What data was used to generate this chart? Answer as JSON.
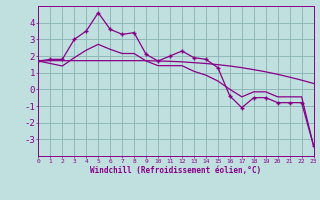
{
  "title": "",
  "xlabel": "Windchill (Refroidissement éolien,°C)",
  "background_color": "#c0e0e0",
  "grid_color": "#90b8b8",
  "line_color": "#880088",
  "x_values": [
    0,
    1,
    2,
    3,
    4,
    5,
    6,
    7,
    8,
    9,
    10,
    11,
    12,
    13,
    14,
    15,
    16,
    17,
    18,
    19,
    20,
    21,
    22,
    23
  ],
  "y_main": [
    1.7,
    1.8,
    1.8,
    3.0,
    3.5,
    4.6,
    3.6,
    3.3,
    3.4,
    2.1,
    1.7,
    2.0,
    2.3,
    1.9,
    1.8,
    1.3,
    -0.4,
    -1.1,
    -0.5,
    -0.5,
    -0.8,
    -0.8,
    -0.8,
    -3.4
  ],
  "y_trend_flat": [
    1.7,
    1.72,
    1.72,
    1.72,
    1.72,
    1.72,
    1.72,
    1.72,
    1.72,
    1.72,
    1.7,
    1.68,
    1.65,
    1.6,
    1.55,
    1.48,
    1.4,
    1.3,
    1.18,
    1.05,
    0.9,
    0.73,
    0.55,
    0.35
  ],
  "y_trend_steep": [
    1.7,
    1.55,
    1.4,
    1.9,
    2.35,
    2.7,
    2.4,
    2.15,
    2.15,
    1.7,
    1.42,
    1.42,
    1.42,
    1.08,
    0.85,
    0.5,
    0.0,
    -0.45,
    -0.15,
    -0.15,
    -0.45,
    -0.45,
    -0.45,
    -3.4
  ],
  "ylim": [
    -4,
    5
  ],
  "yticks": [
    -3,
    -2,
    -1,
    0,
    1,
    2,
    3,
    4
  ],
  "xlim": [
    0,
    23
  ]
}
